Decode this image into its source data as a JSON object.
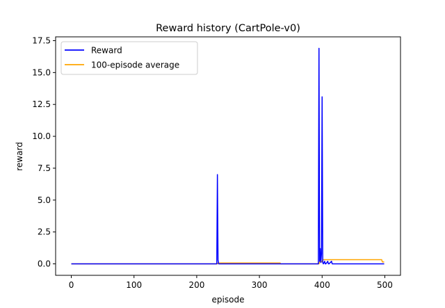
{
  "chart_data": {
    "type": "line",
    "title": "Reward history (CartPole-v0)",
    "xlabel": "episode",
    "ylabel": "reward",
    "xlim": [
      -25,
      525
    ],
    "ylim": [
      -0.9,
      17.8
    ],
    "xticks": [
      0,
      100,
      200,
      300,
      400,
      500
    ],
    "yticks": [
      0.0,
      2.5,
      5.0,
      7.5,
      10.0,
      12.5,
      15.0,
      17.5
    ],
    "xtick_labels": [
      "0",
      "100",
      "200",
      "300",
      "400",
      "500"
    ],
    "ytick_labels": [
      "0.0",
      "2.5",
      "5.0",
      "7.5",
      "10.0",
      "12.5",
      "15.0",
      "17.5"
    ],
    "grid": false,
    "legend_position": "upper-left",
    "series": [
      {
        "name": "Reward",
        "color": "#0000ff",
        "x": [
          0,
          232,
          233,
          234,
          235,
          394,
          395,
          396,
          397,
          398,
          399,
          400,
          401,
          402,
          404,
          405,
          406,
          409,
          410,
          411,
          415,
          416,
          417,
          420,
          499
        ],
        "y": [
          0,
          0,
          7.0,
          0.3,
          0,
          0,
          16.9,
          0.2,
          1.2,
          0.1,
          0.8,
          13.1,
          0.1,
          0,
          0.2,
          0,
          0,
          0.2,
          0,
          0,
          0.2,
          0,
          0,
          0,
          0
        ]
      },
      {
        "name": "100-episode average",
        "color": "#ffa500",
        "x": [
          0,
          233,
          234,
          333,
          334,
          395,
          396,
          400,
          401,
          495,
          496,
          499
        ],
        "y": [
          0,
          0,
          0.07,
          0.07,
          0,
          0,
          0.17,
          0.17,
          0.33,
          0.33,
          0.15,
          0.15
        ]
      }
    ]
  }
}
